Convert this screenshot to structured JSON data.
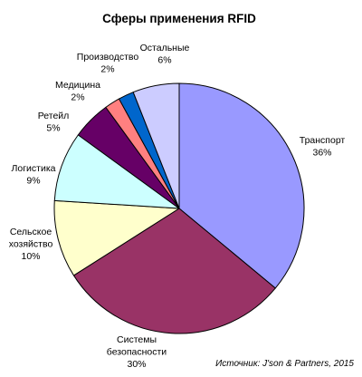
{
  "chart_data": {
    "type": "pie",
    "title": "Сферы применения RFID",
    "start_angle_deg": 0,
    "direction": "clockwise",
    "legend": "none",
    "slices": [
      {
        "key": "transport",
        "lines": [
          "Транспорт",
          "36%"
        ],
        "value": 36,
        "color": "#9999ff"
      },
      {
        "key": "security",
        "lines": [
          "Системы",
          "безопасности",
          "30%"
        ],
        "value": 30,
        "color": "#993366"
      },
      {
        "key": "agriculture",
        "lines": [
          "Сельское",
          "хозяйство",
          "10%"
        ],
        "value": 10,
        "color": "#ffffcc"
      },
      {
        "key": "logistics",
        "lines": [
          "Логистика",
          "9%"
        ],
        "value": 9,
        "color": "#ccffff"
      },
      {
        "key": "retail",
        "lines": [
          "Ретейл",
          "5%"
        ],
        "value": 5,
        "color": "#660066"
      },
      {
        "key": "medicine",
        "lines": [
          "Медицина",
          "2%"
        ],
        "value": 2,
        "color": "#ff8080"
      },
      {
        "key": "production",
        "lines": [
          "Производство",
          "2%"
        ],
        "value": 2,
        "color": "#0066cc"
      },
      {
        "key": "other",
        "lines": [
          "Остальные",
          "6%"
        ],
        "value": 6,
        "color": "#ccccff"
      }
    ],
    "source": "Источник: J'son & Partners, 2015"
  }
}
